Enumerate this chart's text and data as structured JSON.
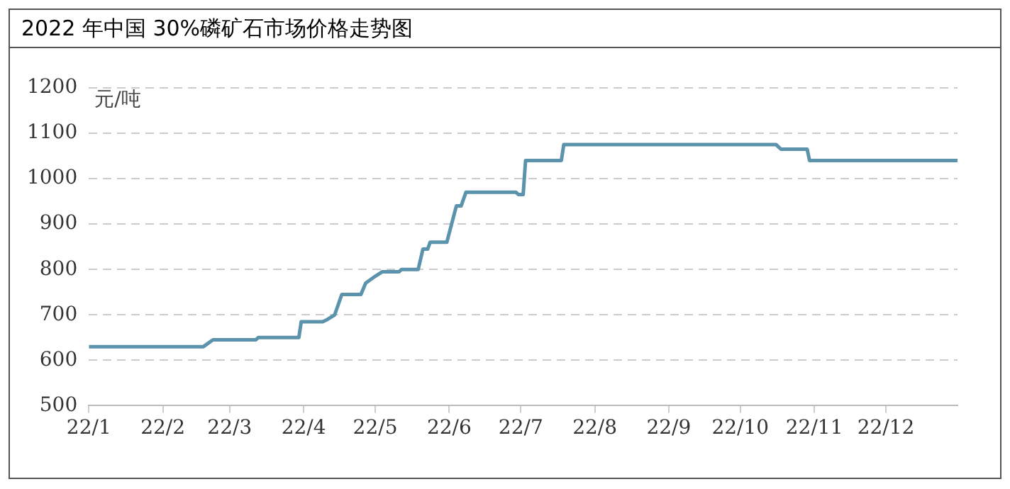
{
  "chart_data": {
    "type": "line",
    "title": "2022 年中国 30%磷矿石市场价格走势图",
    "ylabel": "元/吨",
    "x": [
      "2022-01-01",
      "2022-02-18",
      "2022-02-22",
      "2022-03-12",
      "2022-03-13",
      "2022-03-30",
      "2022-03-31",
      "2022-04-09",
      "2022-04-11",
      "2022-04-14",
      "2022-04-17",
      "2022-04-25",
      "2022-04-27",
      "2022-05-01",
      "2022-05-04",
      "2022-05-11",
      "2022-05-12",
      "2022-05-19",
      "2022-05-21",
      "2022-05-23",
      "2022-05-24",
      "2022-05-31",
      "2022-06-04",
      "2022-06-06",
      "2022-06-08",
      "2022-06-29",
      "2022-06-30",
      "2022-07-02",
      "2022-07-03",
      "2022-07-18",
      "2022-07-19",
      "2022-10-16",
      "2022-10-18",
      "2022-10-29",
      "2022-10-30",
      "2022-12-31"
    ],
    "series": [
      {
        "color": "#5b93ad",
        "values": [
          630,
          630,
          645,
          645,
          650,
          650,
          685,
          685,
          690,
          700,
          745,
          745,
          770,
          785,
          795,
          795,
          800,
          800,
          845,
          845,
          860,
          860,
          940,
          940,
          970,
          970,
          965,
          965,
          1040,
          1040,
          1075,
          1075,
          1065,
          1065,
          1040,
          1040
        ]
      }
    ],
    "xlim": [
      "2022-01-01",
      "2022-12-31"
    ],
    "xticks": [
      {
        "value": "2022-01-01",
        "label": "22/1"
      },
      {
        "value": "2022-02-01",
        "label": "22/2"
      },
      {
        "value": "2022-03-01",
        "label": "22/3"
      },
      {
        "value": "2022-04-01",
        "label": "22/4"
      },
      {
        "value": "2022-05-01",
        "label": "22/5"
      },
      {
        "value": "2022-06-01",
        "label": "22/6"
      },
      {
        "value": "2022-07-01",
        "label": "22/7"
      },
      {
        "value": "2022-08-01",
        "label": "22/8"
      },
      {
        "value": "2022-09-01",
        "label": "22/9"
      },
      {
        "value": "2022-10-01",
        "label": "22/10"
      },
      {
        "value": "2022-11-01",
        "label": "22/11"
      },
      {
        "value": "2022-12-01",
        "label": "22/12"
      }
    ],
    "ylim": [
      500,
      1200
    ],
    "yticks": [
      500,
      600,
      700,
      800,
      900,
      1000,
      1100,
      1200
    ],
    "grid": "y",
    "legend": false,
    "marker": "none",
    "line_style": "solid"
  }
}
